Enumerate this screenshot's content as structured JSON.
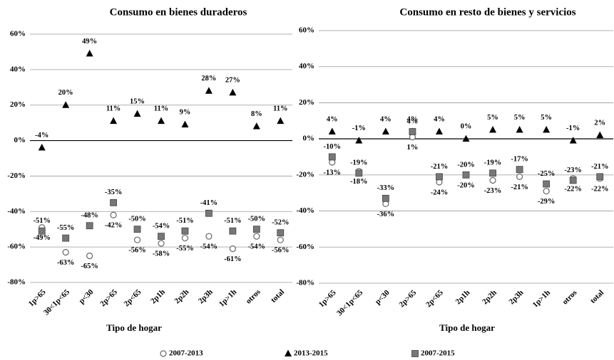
{
  "chart_data": [
    {
      "type": "scatter",
      "title": "Consumo en bienes duraderos",
      "x_label": "Tipo de hogar",
      "categories": [
        "1p>65",
        "30<1p<65",
        "p<30",
        "2p>65",
        "2p<65",
        "2p1h",
        "2p2h",
        "2p3h",
        "1p>1h",
        "otros",
        "total"
      ],
      "ylim": [
        -80,
        60
      ],
      "yticks": [
        {
          "value": -80,
          "label": "-80%"
        },
        {
          "value": -60,
          "label": "-60%"
        },
        {
          "value": -40,
          "label": "-40%"
        },
        {
          "value": -20,
          "label": "-20%"
        },
        {
          "value": 0,
          "label": "0%"
        },
        {
          "value": 20,
          "label": "20%"
        },
        {
          "value": 40,
          "label": "40%"
        },
        {
          "value": 60,
          "label": "60%"
        }
      ],
      "grid": true,
      "series": [
        {
          "name": "2007-2013",
          "marker": "circle",
          "color": "#ffffff",
          "values": [
            -49,
            -63,
            -65,
            -42,
            -56,
            -58,
            -55,
            -54,
            -61,
            -54,
            -56
          ],
          "value_labels": [
            "-49%",
            "-63%",
            "-65%",
            "-42%",
            "-56%",
            "-58%",
            "-55%",
            "-54%",
            "-61%",
            "-54%",
            "-56%"
          ]
        },
        {
          "name": "2013-2015",
          "marker": "triangle",
          "color": "#000000",
          "values": [
            -4,
            20,
            49,
            11,
            15,
            11,
            9,
            28,
            27,
            8,
            11
          ],
          "value_labels": [
            "-4%",
            "20%",
            "49%",
            "11%",
            "15%",
            "11%",
            "9%",
            "28%",
            "27%",
            "8%",
            "11%"
          ]
        },
        {
          "name": "2007-2015",
          "marker": "square",
          "color": "#777777",
          "values": [
            -51,
            -55,
            -48,
            -35,
            -50,
            -54,
            -51,
            -41,
            -51,
            -50,
            -52
          ],
          "value_labels": [
            "-51%",
            "-55%",
            "-48%",
            "-35%",
            "-50%",
            "-54%",
            "-51%",
            "-41%",
            "-51%",
            "-50%",
            "-52%"
          ]
        }
      ]
    },
    {
      "type": "scatter",
      "title": "Consumo en resto de bienes y servicios",
      "x_label": "Tipo de hogar",
      "categories": [
        "1p>65",
        "30<1p<65",
        "p<30",
        "2p>65",
        "2p<65",
        "2p1h",
        "2p2h",
        "2p3h",
        "1p>1h",
        "otros",
        "total"
      ],
      "ylim": [
        -80,
        60
      ],
      "yticks": [
        {
          "value": -80,
          "label": "-80%"
        },
        {
          "value": -60,
          "label": "-60%"
        },
        {
          "value": -40,
          "label": "-40%"
        },
        {
          "value": -20,
          "label": "-20%"
        },
        {
          "value": 0,
          "label": "0%"
        },
        {
          "value": 20,
          "label": "20%"
        },
        {
          "value": 40,
          "label": "40%"
        },
        {
          "value": 60,
          "label": "60%"
        }
      ],
      "grid": true,
      "series": [
        {
          "marker": "circle",
          "color": "#ffffff",
          "values": [
            -13,
            -18,
            -36,
            1,
            -24,
            -20,
            -23,
            -21,
            -29,
            -22,
            -22
          ],
          "value_labels": [
            "-13%",
            "-18%",
            "-36%",
            "1%",
            "-24%",
            "-20%",
            "-23%",
            "-21%",
            "-29%",
            "-22%",
            "-22%"
          ]
        },
        {
          "marker": "triangle",
          "color": "#000000",
          "values": [
            4,
            -1,
            4,
            4,
            4,
            0,
            5,
            5,
            5,
            -1,
            2
          ],
          "value_labels": [
            "4%",
            "-1%",
            "4%",
            "4%",
            "4%",
            "0%",
            "5%",
            "5%",
            "5%",
            "-1%",
            "2%"
          ]
        },
        {
          "marker": "square",
          "color": "#777777",
          "values": [
            -10,
            -19,
            -33,
            4,
            -21,
            -20,
            -19,
            -17,
            -25,
            -23,
            -21
          ],
          "value_labels": [
            "-10%",
            "-19%",
            "-33%",
            "4%",
            "-21%",
            "-20%",
            "-19%",
            "-17%",
            "-25%",
            "-23%",
            "-21%"
          ]
        }
      ]
    }
  ]
}
